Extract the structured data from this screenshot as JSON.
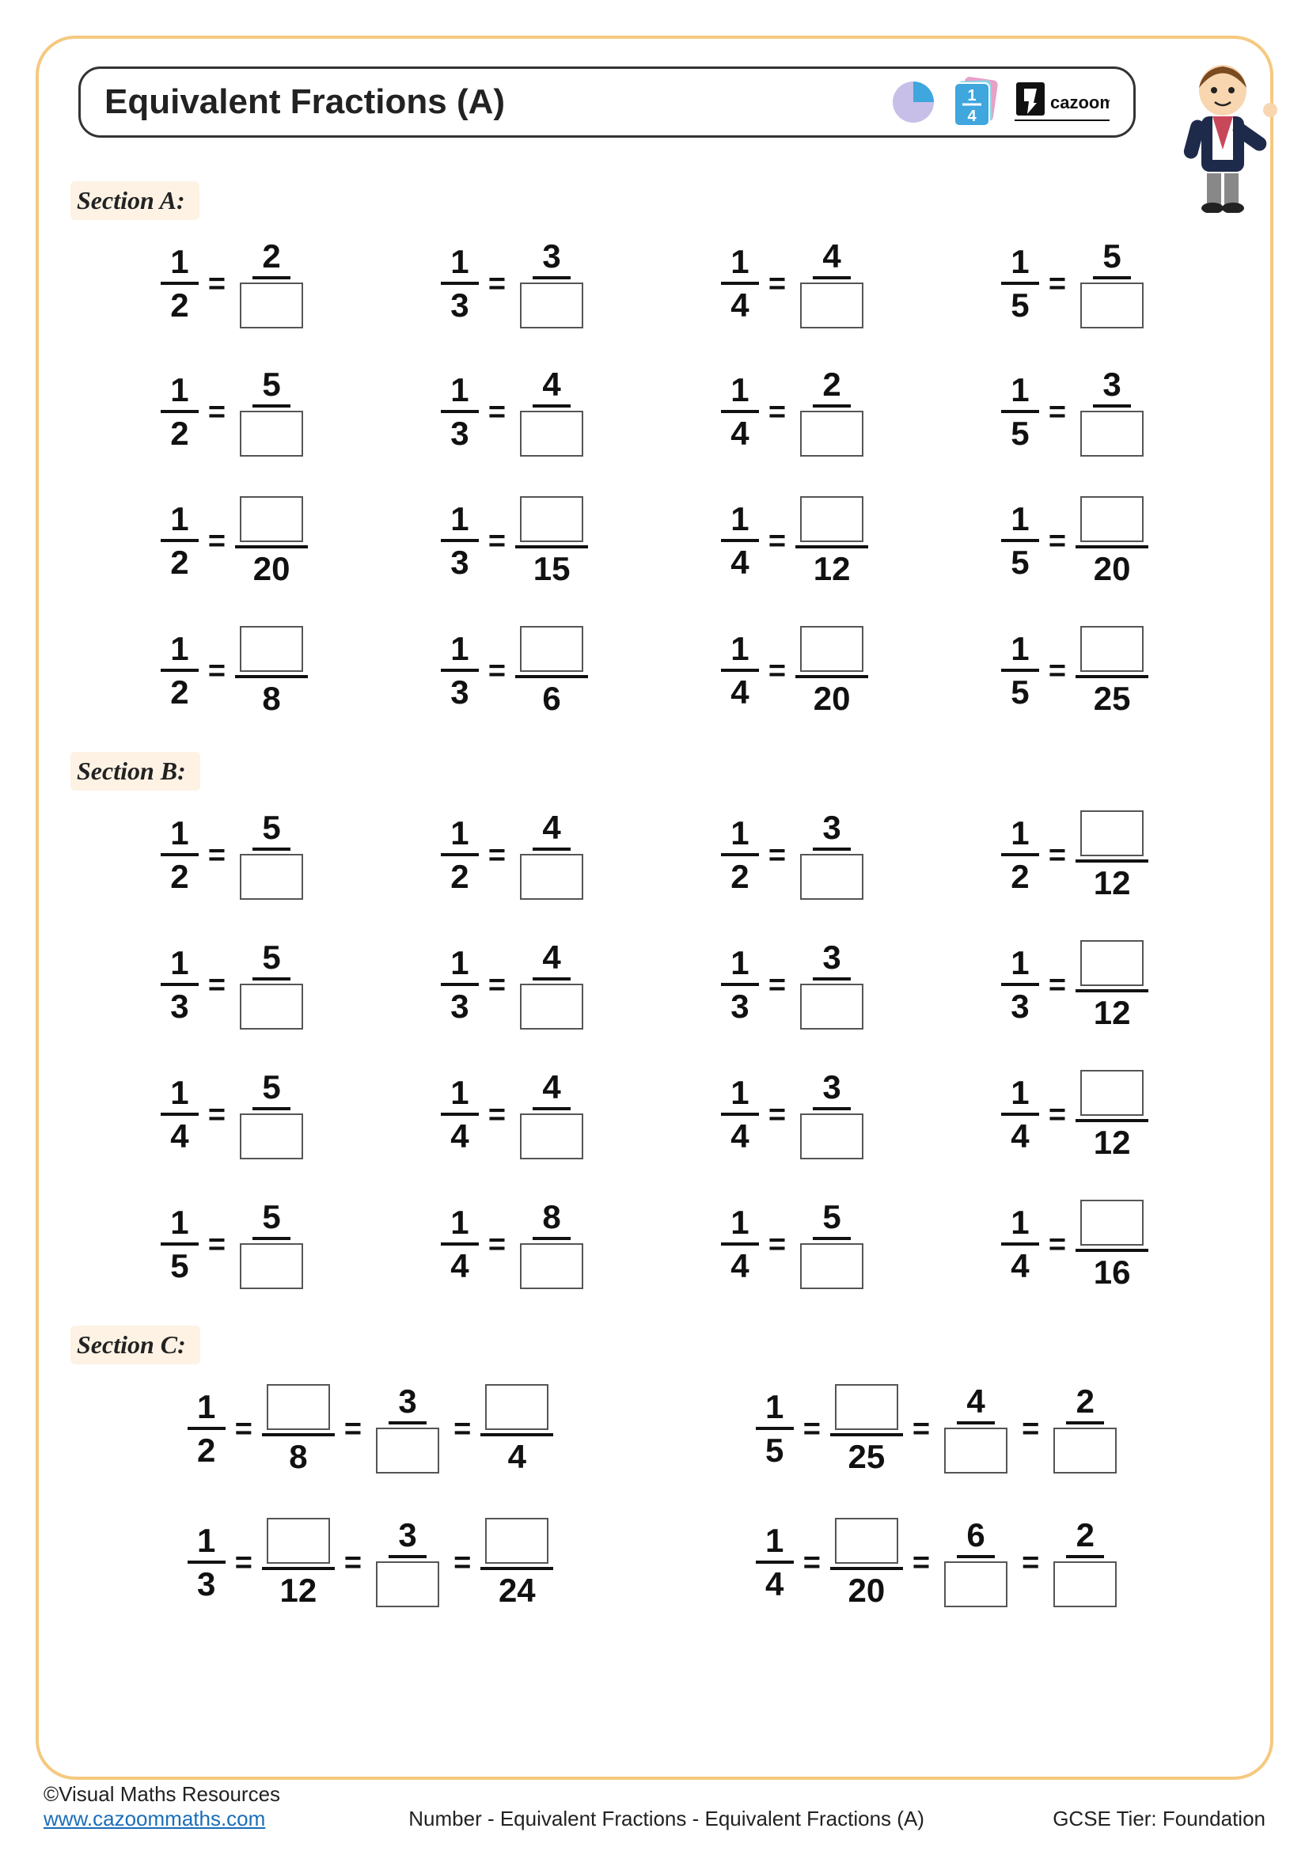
{
  "title": "Equivalent Fractions (A)",
  "brand": "cazoom!",
  "card_fraction": {
    "num": "1",
    "den": "4"
  },
  "colors": {
    "border": "#f5c97f",
    "card_blue": "#3fa6de",
    "pie_purple": "#c7bfe8",
    "pie_blue": "#3fa6de",
    "section_bg": "#fdf2e4",
    "link": "#1a6eb8"
  },
  "sections": {
    "a": {
      "label": "Section A:",
      "rows": [
        [
          {
            "ln": "1",
            "ld": "2",
            "rn": "2",
            "rd": "?"
          },
          {
            "ln": "1",
            "ld": "3",
            "rn": "3",
            "rd": "?"
          },
          {
            "ln": "1",
            "ld": "4",
            "rn": "4",
            "rd": "?"
          },
          {
            "ln": "1",
            "ld": "5",
            "rn": "5",
            "rd": "?"
          }
        ],
        [
          {
            "ln": "1",
            "ld": "2",
            "rn": "5",
            "rd": "?"
          },
          {
            "ln": "1",
            "ld": "3",
            "rn": "4",
            "rd": "?"
          },
          {
            "ln": "1",
            "ld": "4",
            "rn": "2",
            "rd": "?"
          },
          {
            "ln": "1",
            "ld": "5",
            "rn": "3",
            "rd": "?"
          }
        ],
        [
          {
            "ln": "1",
            "ld": "2",
            "rn": "?",
            "rd": "20"
          },
          {
            "ln": "1",
            "ld": "3",
            "rn": "?",
            "rd": "15"
          },
          {
            "ln": "1",
            "ld": "4",
            "rn": "?",
            "rd": "12"
          },
          {
            "ln": "1",
            "ld": "5",
            "rn": "?",
            "rd": "20"
          }
        ],
        [
          {
            "ln": "1",
            "ld": "2",
            "rn": "?",
            "rd": "8"
          },
          {
            "ln": "1",
            "ld": "3",
            "rn": "?",
            "rd": "6"
          },
          {
            "ln": "1",
            "ld": "4",
            "rn": "?",
            "rd": "20"
          },
          {
            "ln": "1",
            "ld": "5",
            "rn": "?",
            "rd": "25"
          }
        ]
      ]
    },
    "b": {
      "label": "Section B:",
      "rows": [
        [
          {
            "ln": "1",
            "ld": "2",
            "rn": "5",
            "rd": "?"
          },
          {
            "ln": "1",
            "ld": "2",
            "rn": "4",
            "rd": "?"
          },
          {
            "ln": "1",
            "ld": "2",
            "rn": "3",
            "rd": "?"
          },
          {
            "ln": "1",
            "ld": "2",
            "rn": "?",
            "rd": "12"
          }
        ],
        [
          {
            "ln": "1",
            "ld": "3",
            "rn": "5",
            "rd": "?"
          },
          {
            "ln": "1",
            "ld": "3",
            "rn": "4",
            "rd": "?"
          },
          {
            "ln": "1",
            "ld": "3",
            "rn": "3",
            "rd": "?"
          },
          {
            "ln": "1",
            "ld": "3",
            "rn": "?",
            "rd": "12"
          }
        ],
        [
          {
            "ln": "1",
            "ld": "4",
            "rn": "5",
            "rd": "?"
          },
          {
            "ln": "1",
            "ld": "4",
            "rn": "4",
            "rd": "?"
          },
          {
            "ln": "1",
            "ld": "4",
            "rn": "3",
            "rd": "?"
          },
          {
            "ln": "1",
            "ld": "4",
            "rn": "?",
            "rd": "12"
          }
        ],
        [
          {
            "ln": "1",
            "ld": "5",
            "rn": "5",
            "rd": "?"
          },
          {
            "ln": "1",
            "ld": "4",
            "rn": "8",
            "rd": "?"
          },
          {
            "ln": "1",
            "ld": "4",
            "rn": "5",
            "rd": "?"
          },
          {
            "ln": "1",
            "ld": "4",
            "rn": "?",
            "rd": "16"
          }
        ]
      ]
    },
    "c": {
      "label": "Section C:",
      "rows": [
        [
          {
            "parts": [
              {
                "n": "1",
                "d": "2"
              },
              {
                "n": "?",
                "d": "8"
              },
              {
                "n": "3",
                "d": "?"
              },
              {
                "n": "?",
                "d": "4"
              }
            ]
          },
          {
            "parts": [
              {
                "n": "1",
                "d": "5"
              },
              {
                "n": "?",
                "d": "25"
              },
              {
                "n": "4",
                "d": "?"
              },
              {
                "n": "2",
                "d": "?"
              }
            ]
          }
        ],
        [
          {
            "parts": [
              {
                "n": "1",
                "d": "3"
              },
              {
                "n": "?",
                "d": "12"
              },
              {
                "n": "3",
                "d": "?"
              },
              {
                "n": "?",
                "d": "24"
              }
            ]
          },
          {
            "parts": [
              {
                "n": "1",
                "d": "4"
              },
              {
                "n": "?",
                "d": "20"
              },
              {
                "n": "6",
                "d": "?"
              },
              {
                "n": "2",
                "d": "?"
              }
            ]
          }
        ]
      ]
    }
  },
  "footer": {
    "copyright": "©Visual Maths Resources",
    "url": "www.cazoommaths.com",
    "center": "Number - Equivalent Fractions - Equivalent Fractions (A)",
    "right": "GCSE Tier: Foundation"
  }
}
